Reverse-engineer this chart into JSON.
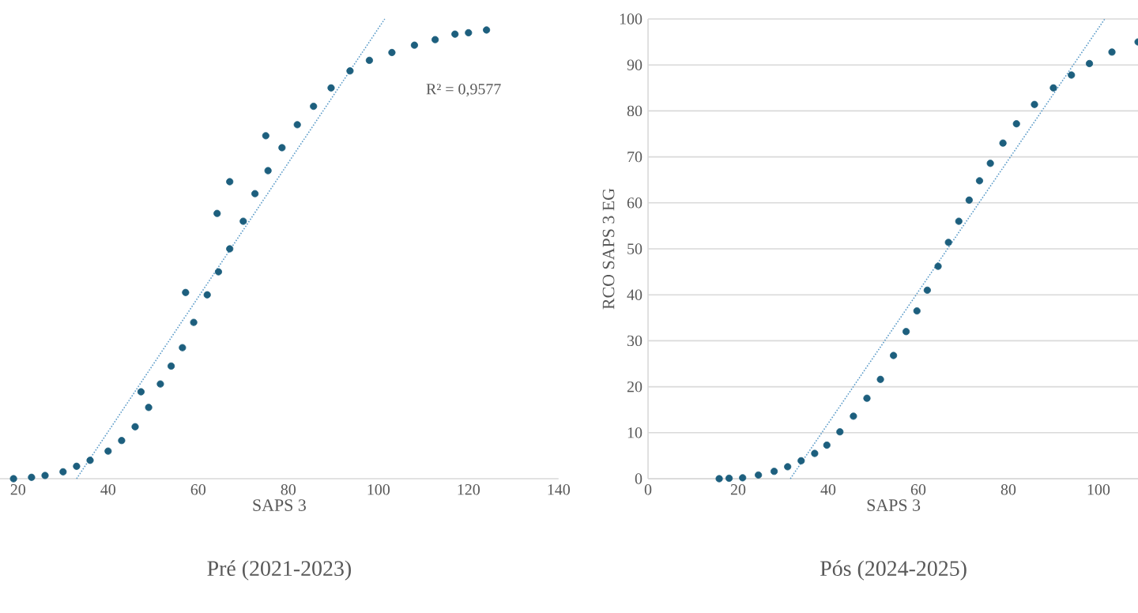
{
  "chart_data": [
    {
      "type": "scatter",
      "title": "Pré (2021-2023)",
      "xlabel": "SAPS 3",
      "xlim": [
        16,
        140
      ],
      "xticks": [
        20,
        40,
        60,
        80,
        100,
        120,
        140
      ],
      "ylim": [
        0,
        100
      ],
      "yticks": [
        0,
        10,
        20,
        30,
        40,
        50,
        60,
        70,
        80,
        90,
        100
      ],
      "tick_labels": "x",
      "grid": "y",
      "annotations": [
        "R² = 0,9577"
      ],
      "series": [
        {
          "color": "#1d5f7e",
          "marker": "circle",
          "x": [
            19,
            23,
            26,
            30,
            33,
            36,
            40,
            43,
            46,
            49,
            51.6,
            54,
            56.5,
            59,
            62,
            64.5,
            67,
            70,
            72.6,
            75.5,
            78.6,
            82,
            85.6,
            89.5,
            93.7,
            98,
            103,
            108,
            112.6,
            117,
            120,
            124,
            47.3,
            57.2,
            64.2,
            67,
            75
          ],
          "values": [
            0,
            0.3,
            0.7,
            1.5,
            2.7,
            4,
            6,
            8.3,
            11.3,
            15.5,
            20.6,
            24.5,
            28.5,
            34,
            40,
            45,
            50,
            56,
            62,
            67,
            72,
            77,
            81,
            85,
            88.7,
            91,
            92.7,
            94.3,
            95.5,
            96.7,
            97,
            97.6,
            18.9,
            40.5,
            57.7,
            64.6,
            74.6
          ]
        },
        {
          "type": "line",
          "color": "#5b9bc8",
          "line_style": "dotted",
          "marker": "none",
          "x": [
            33,
            101.4
          ],
          "values": [
            0,
            100
          ]
        }
      ]
    },
    {
      "type": "scatter",
      "title": "Pós (2024-2025)",
      "xlabel": "SAPS 3",
      "ylabel": "RCO SAPS 3 EG",
      "xlim": [
        0,
        109
      ],
      "xticks": [
        0,
        20,
        40,
        60,
        80,
        100
      ],
      "ylim": [
        0,
        100
      ],
      "yticks": [
        0,
        10,
        20,
        30,
        40,
        50,
        60,
        70,
        80,
        90,
        100
      ],
      "grid": "y",
      "series": [
        {
          "color": "#1d5f7e",
          "marker": "circle",
          "x": [
            15.8,
            18,
            21,
            24.5,
            28,
            31,
            34,
            37,
            39.7,
            42.6,
            45.6,
            48.6,
            51.6,
            54.5,
            57.3,
            59.7,
            62,
            64.4,
            66.7,
            69,
            71.3,
            73.6,
            76,
            78.8,
            81.8,
            85.8,
            90,
            94,
            98,
            103,
            108.8
          ],
          "values": [
            0,
            0.1,
            0.2,
            0.8,
            1.6,
            2.6,
            3.9,
            5.5,
            7.3,
            10.2,
            13.6,
            17.5,
            21.6,
            26.8,
            32,
            36.5,
            41,
            46.2,
            51.4,
            56,
            60.6,
            64.8,
            68.6,
            73,
            77.2,
            81.4,
            85,
            87.8,
            90.3,
            92.8,
            95
          ]
        },
        {
          "type": "line",
          "color": "#5b9bc8",
          "line_style": "dotted",
          "marker": "none",
          "x": [
            31.6,
            101.4
          ],
          "values": [
            0,
            100
          ]
        }
      ]
    }
  ]
}
